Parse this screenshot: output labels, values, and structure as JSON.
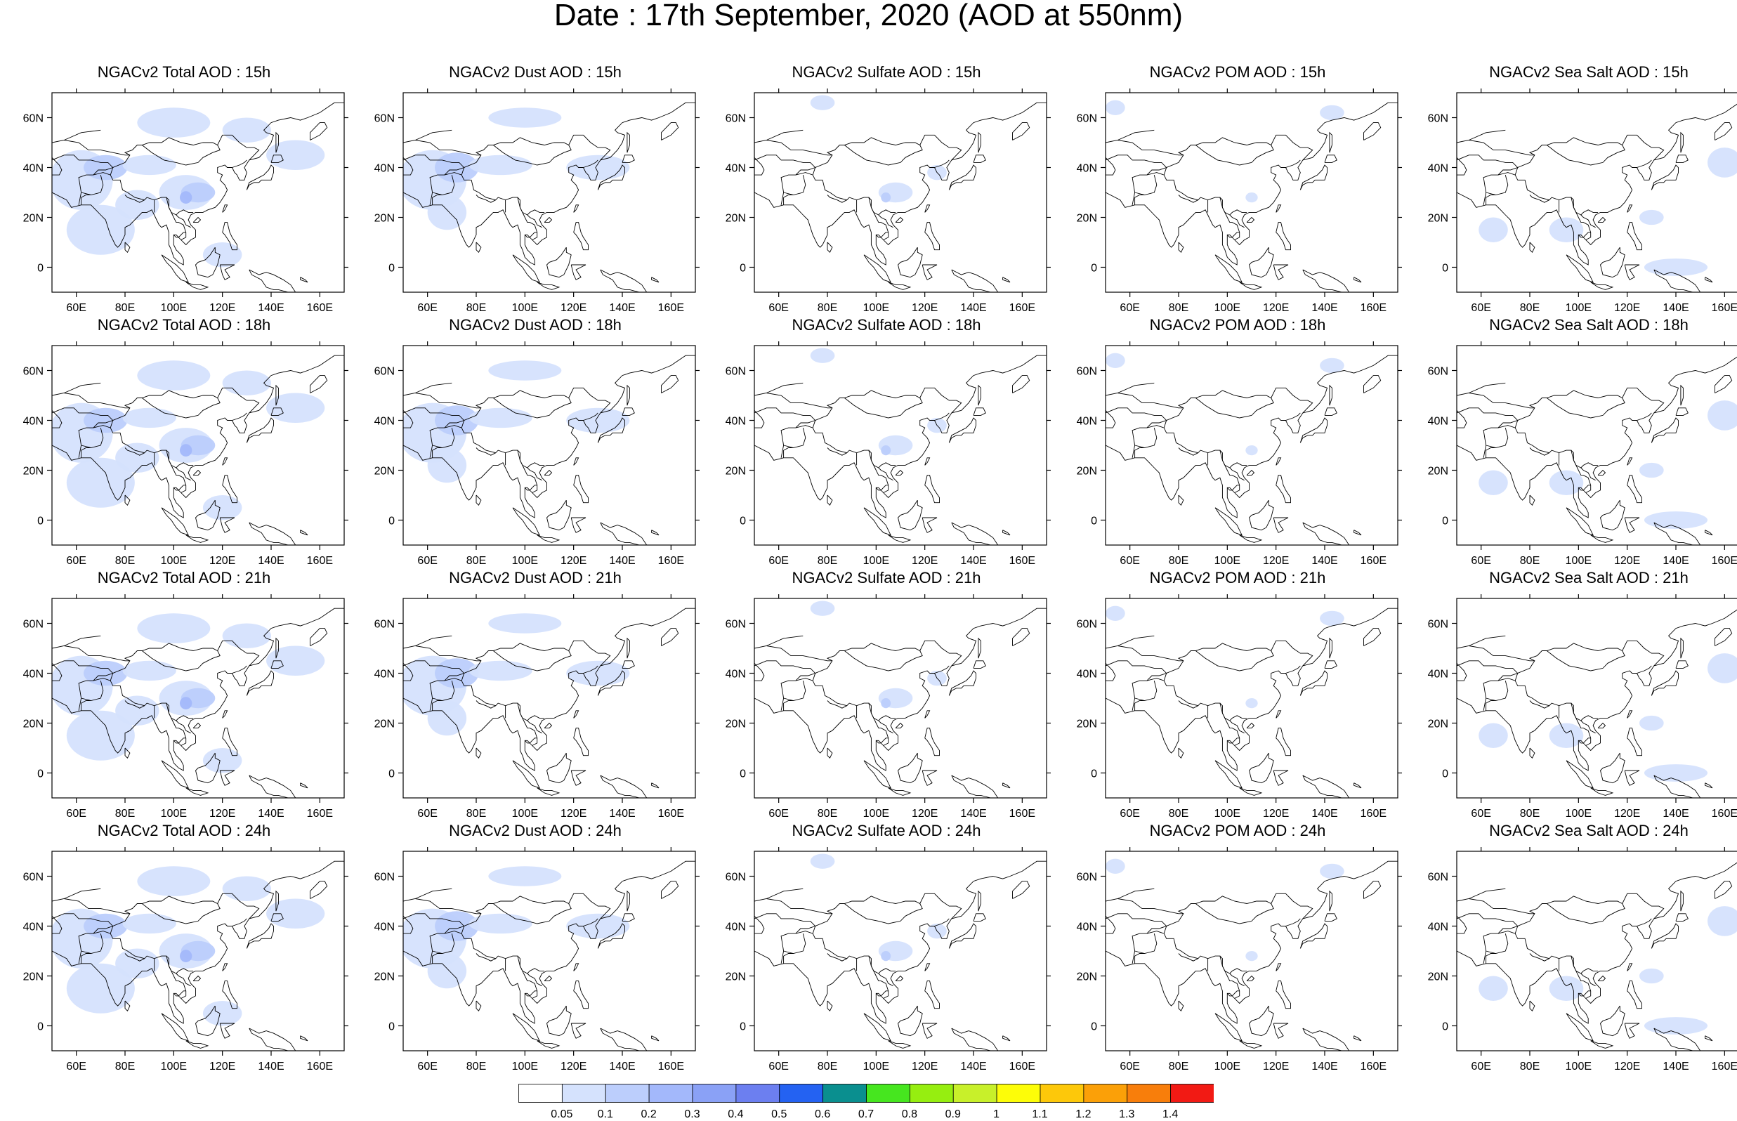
{
  "figure": {
    "title": "Date : 17th September, 2020 (AOD at 550nm)"
  },
  "panels": [
    {
      "title": "NGACv2 Total AOD : 15h",
      "species": "total",
      "hour": 15
    },
    {
      "title": "NGACv2 Dust AOD : 15h",
      "species": "dust",
      "hour": 15
    },
    {
      "title": "NGACv2 Sulfate AOD : 15h",
      "species": "sulfate",
      "hour": 15
    },
    {
      "title": "NGACv2 POM AOD : 15h",
      "species": "pom",
      "hour": 15
    },
    {
      "title": "NGACv2 Sea Salt AOD : 15h",
      "species": "seasalt",
      "hour": 15
    },
    {
      "title": "NGACv2 Total AOD : 18h",
      "species": "total",
      "hour": 18
    },
    {
      "title": "NGACv2 Dust AOD : 18h",
      "species": "dust",
      "hour": 18
    },
    {
      "title": "NGACv2 Sulfate AOD : 18h",
      "species": "sulfate",
      "hour": 18
    },
    {
      "title": "NGACv2 POM AOD : 18h",
      "species": "pom",
      "hour": 18
    },
    {
      "title": "NGACv2 Sea Salt AOD : 18h",
      "species": "seasalt",
      "hour": 18
    },
    {
      "title": "NGACv2 Total AOD : 21h",
      "species": "total",
      "hour": 21
    },
    {
      "title": "NGACv2 Dust AOD : 21h",
      "species": "dust",
      "hour": 21
    },
    {
      "title": "NGACv2 Sulfate AOD : 21h",
      "species": "sulfate",
      "hour": 21
    },
    {
      "title": "NGACv2 POM AOD : 21h",
      "species": "pom",
      "hour": 21
    },
    {
      "title": "NGACv2 Sea Salt AOD : 21h",
      "species": "seasalt",
      "hour": 21
    },
    {
      "title": "NGACv2 Total AOD : 24h",
      "species": "total",
      "hour": 24
    },
    {
      "title": "NGACv2 Dust AOD : 24h",
      "species": "dust",
      "hour": 24
    },
    {
      "title": "NGACv2 Sulfate AOD : 24h",
      "species": "sulfate",
      "hour": 24
    },
    {
      "title": "NGACv2 POM AOD : 24h",
      "species": "pom",
      "hour": 24
    },
    {
      "title": "NGACv2 Sea Salt  AOD : 24h",
      "species": "seasalt",
      "hour": 24
    }
  ],
  "axes": {
    "lon_range": [
      50,
      170
    ],
    "lat_range": [
      -10,
      70
    ],
    "x_ticks": [
      60,
      80,
      100,
      120,
      140,
      160
    ],
    "x_tick_labels": [
      "60E",
      "80E",
      "100E",
      "120E",
      "140E",
      "160E"
    ],
    "y_ticks": [
      0,
      20,
      40,
      60
    ],
    "y_tick_labels": [
      "0",
      "20N",
      "40N",
      "60N"
    ]
  },
  "colorbar": {
    "labels": [
      "0.05",
      "0.1",
      "0.2",
      "0.3",
      "0.4",
      "0.5",
      "0.6",
      "0.7",
      "0.8",
      "0.9",
      "1",
      "1.1",
      "1.2",
      "1.3",
      "1.4"
    ],
    "colors": [
      "#ffffff",
      "#d5e2fd",
      "#bccefc",
      "#a3b8fb",
      "#8aa1f6",
      "#6c7ff0",
      "#2462f2",
      "#0a8f8f",
      "#46e61f",
      "#96ee10",
      "#c8f02a",
      "#fdfd08",
      "#fdc80a",
      "#fba008",
      "#f87e0b",
      "#f21a14"
    ]
  }
}
